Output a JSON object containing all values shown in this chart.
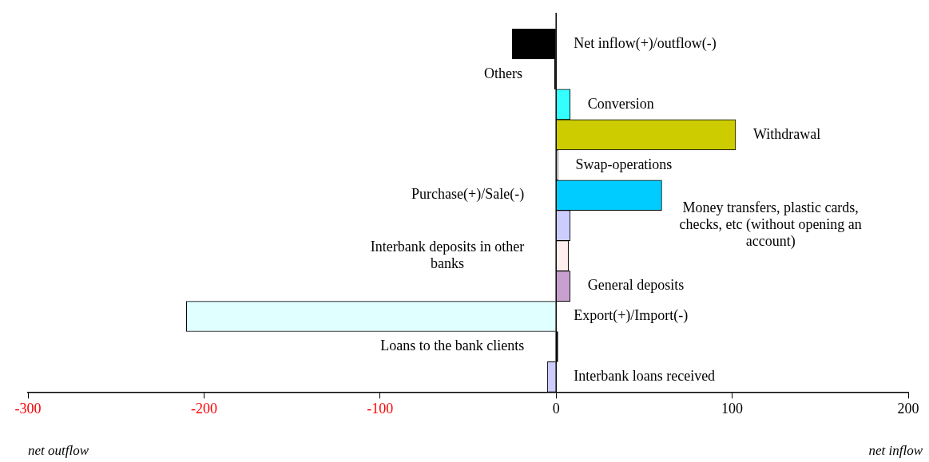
{
  "chart_data": {
    "type": "bar",
    "orientation": "horizontal",
    "categories": [
      "Net inflow(+)/outflow(-)",
      "Others",
      "Conversion",
      "Withdrawal",
      "Swap-operations",
      "Purchase(+)/Sale(-)",
      "Money transfers, plastic cards, checks, etc (without opening an account)",
      "Interbank deposits in other banks",
      "General deposits",
      "Export(+)/Import(-)",
      "Loans to the bank clients",
      "Interbank loans received"
    ],
    "values": [
      -25,
      -1,
      8,
      102,
      1,
      60,
      8,
      7,
      8,
      -210,
      1,
      -5
    ],
    "colors": [
      "#000000",
      "#000000",
      "#33ffff",
      "#cccc00",
      "#ffffff",
      "#00ccff",
      "#ccccff",
      "#ffeeee",
      "#c8a0d0",
      "#e0ffff",
      "#000000",
      "#ccccff"
    ],
    "xlim": [
      -300,
      200
    ],
    "xticks": [
      -300,
      -200,
      -100,
      0,
      100,
      200
    ],
    "annotations": [
      "net outflow",
      "net inflow"
    ]
  }
}
